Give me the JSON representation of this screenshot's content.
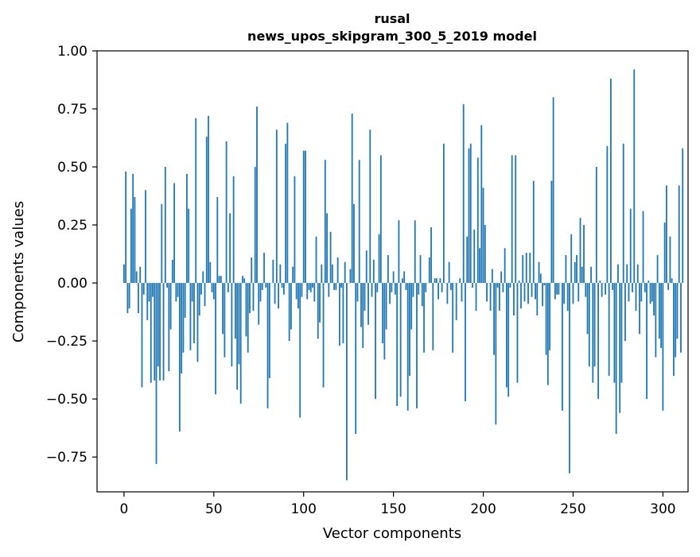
{
  "chart_data": {
    "type": "bar",
    "title": "rusal",
    "subtitle": "news_upos_skipgram_300_5_2019 model",
    "xlabel": "Vector components",
    "ylabel": "Components values",
    "xlim": [
      -15,
      314
    ],
    "ylim": [
      -0.9,
      1.0
    ],
    "xticks": [
      0,
      50,
      100,
      150,
      200,
      250,
      300
    ],
    "xtick_labels": [
      "0",
      "50",
      "100",
      "150",
      "200",
      "250",
      "300"
    ],
    "yticks": [
      -0.75,
      -0.5,
      -0.25,
      0.0,
      0.25,
      0.5,
      0.75,
      1.0
    ],
    "ytick_labels": [
      "−0.75",
      "−0.50",
      "−0.25",
      "0.00",
      "0.25",
      "0.50",
      "0.75",
      "1.00"
    ],
    "bar_color": "#1f77b4",
    "grid": false,
    "values": [
      0.08,
      0.48,
      -0.13,
      -0.11,
      0.32,
      0.47,
      0.37,
      0.05,
      -0.13,
      0.07,
      -0.45,
      -0.05,
      0.4,
      -0.16,
      -0.08,
      -0.43,
      -0.06,
      -0.42,
      -0.78,
      -0.36,
      -0.42,
      0.34,
      -0.42,
      0.5,
      -0.02,
      -0.38,
      -0.2,
      0.1,
      0.43,
      -0.08,
      -0.06,
      -0.64,
      -0.39,
      -0.3,
      -0.15,
      0.47,
      0.32,
      -0.29,
      -0.08,
      -0.26,
      0.71,
      -0.34,
      -0.14,
      -0.05,
      0.05,
      -0.1,
      0.63,
      0.72,
      0.09,
      -0.04,
      -0.07,
      -0.48,
      0.37,
      0.03,
      0.03,
      -0.22,
      -0.32,
      0.61,
      -0.04,
      0.3,
      -0.36,
      0.46,
      -0.24,
      -0.46,
      -0.35,
      -0.52,
      0.03,
      0.02,
      -0.23,
      -0.3,
      -0.13,
      0.11,
      -0.12,
      0.5,
      0.76,
      -0.18,
      -0.08,
      -0.03,
      0.13,
      -0.02,
      -0.54,
      -0.41,
      0.0,
      0.1,
      -0.09,
      0.66,
      -0.11,
      0.08,
      -0.02,
      -0.05,
      0.6,
      0.69,
      -0.25,
      -0.2,
      0.07,
      0.46,
      -0.07,
      -0.11,
      -0.58,
      -0.06,
      0.57,
      0.57,
      -0.07,
      -0.03,
      -0.04,
      -0.02,
      -0.08,
      0.2,
      -0.24,
      -0.17,
      0.08,
      -0.45,
      0.53,
      0.3,
      -0.06,
      0.22,
      0.08,
      -0.03,
      -0.03,
      0.11,
      -0.27,
      -0.02,
      -0.26,
      0.09,
      -0.85,
      0.0,
      0.06,
      0.73,
      0.34,
      -0.65,
      -0.08,
      0.53,
      -0.19,
      -0.28,
      -0.12,
      0.14,
      -0.18,
      0.66,
      -0.06,
      0.1,
      -0.5,
      -0.04,
      0.21,
      0.55,
      -0.26,
      -0.33,
      -0.2,
      0.12,
      -0.09,
      -0.04,
      0.05,
      -0.05,
      -0.53,
      0.27,
      -0.49,
      0.02,
      0.05,
      -0.03,
      -0.55,
      -0.4,
      -0.2,
      -0.06,
      0.27,
      -0.54,
      -0.05,
      0.12,
      -0.1,
      -0.3,
      -0.04,
      0.0,
      0.11,
      0.24,
      -0.29,
      0.02,
      0.02,
      -0.07,
      0.02,
      -0.04,
      0.6,
      0.0,
      -0.09,
      0.09,
      -0.03,
      -0.3,
      0.0,
      -0.16,
      0.0,
      0.02,
      -0.08,
      0.77,
      -0.51,
      0.2,
      0.58,
      0.6,
      -0.02,
      0.23,
      -0.12,
      0.54,
      0.15,
      0.68,
      0.41,
      0.25,
      -0.08,
      0.0,
      -0.12,
      0.06,
      -0.31,
      -0.61,
      -0.02,
      -0.12,
      0.05,
      -0.04,
      0.15,
      -0.45,
      -0.49,
      -0.02,
      0.55,
      -0.14,
      0.55,
      -0.43,
      0.01,
      -0.11,
      0.12,
      -0.08,
      0.13,
      -0.09,
      0.13,
      -0.06,
      0.44,
      -0.07,
      -0.14,
      0.09,
      0.04,
      -0.1,
      -0.01,
      -0.31,
      -0.44,
      -0.29,
      0.44,
      0.8,
      -0.07,
      -0.05,
      -0.05,
      0.0,
      -0.55,
      -0.09,
      0.12,
      -0.12,
      -0.82,
      0.21,
      -0.09,
      0.09,
      0.12,
      -0.08,
      0.28,
      0.07,
      0.25,
      -0.06,
      -0.22,
      -0.36,
      0.07,
      -0.43,
      -0.36,
      0.5,
      -0.5,
      0.01,
      -0.06,
      0.0,
      -0.05,
      0.59,
      -0.4,
      0.88,
      -0.03,
      -0.43,
      -0.65,
      0.08,
      -0.56,
      -0.43,
      0.6,
      -0.25,
      0.08,
      -0.08,
      0.32,
      -0.04,
      0.92,
      -0.12,
      0.08,
      -0.22,
      -0.08,
      0.31,
      -0.04,
      -0.5,
      0.01,
      -0.09,
      -0.08,
      -0.14,
      -0.32,
      0.12,
      -0.24,
      -0.28,
      -0.55,
      0.26,
      0.42,
      -0.03,
      0.2,
      0.02,
      -0.4,
      -0.32,
      -0.24,
      0.42,
      -0.3,
      0.58
    ]
  }
}
